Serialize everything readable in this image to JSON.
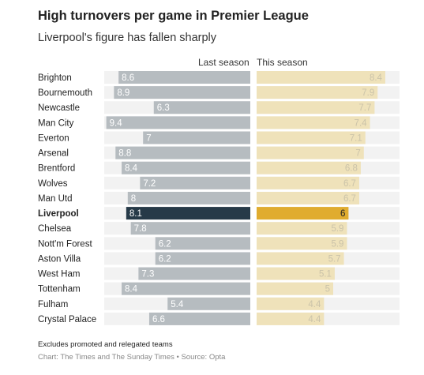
{
  "title": "High turnovers per game in Premier League",
  "subtitle": "Liverpool's figure has fallen sharply",
  "footnote": "Excludes promoted and relegated teams",
  "source": "Chart: The Times and The Sunday Times • Source: Opta",
  "colors": {
    "last_season": "#b6bcc0",
    "this_season": "#efe2ba",
    "highlight_last": "#263a48",
    "highlight_this": "#e0ac2f",
    "row_background": "#f2f2f2",
    "label_on_grey": "#ffffff",
    "label_on_cream": "#cbc3a9"
  },
  "chart_data": {
    "type": "bar",
    "orientation": "horizontal",
    "categories": [
      "Brighton",
      "Bournemouth",
      "Newcastle",
      "Man City",
      "Everton",
      "Arsenal",
      "Brentford",
      "Wolves",
      "Man Utd",
      "Liverpool",
      "Chelsea",
      "Nott'm Forest",
      "Aston Villa",
      "West Ham",
      "Tottenham",
      "Fulham",
      "Crystal Palace"
    ],
    "highlight": "Liverpool",
    "series": [
      {
        "name": "Last season",
        "values": [
          8.6,
          8.9,
          6.3,
          9.4,
          7,
          8.8,
          8.4,
          7.2,
          8,
          8.1,
          7.8,
          6.2,
          6.2,
          7.3,
          8.4,
          5.4,
          6.6
        ]
      },
      {
        "name": "This season",
        "values": [
          8.4,
          7.9,
          7.7,
          7.4,
          7.1,
          7,
          6.8,
          6.7,
          6.7,
          6,
          5.9,
          5.9,
          5.7,
          5.1,
          5,
          4.4,
          4.4
        ]
      }
    ]
  }
}
